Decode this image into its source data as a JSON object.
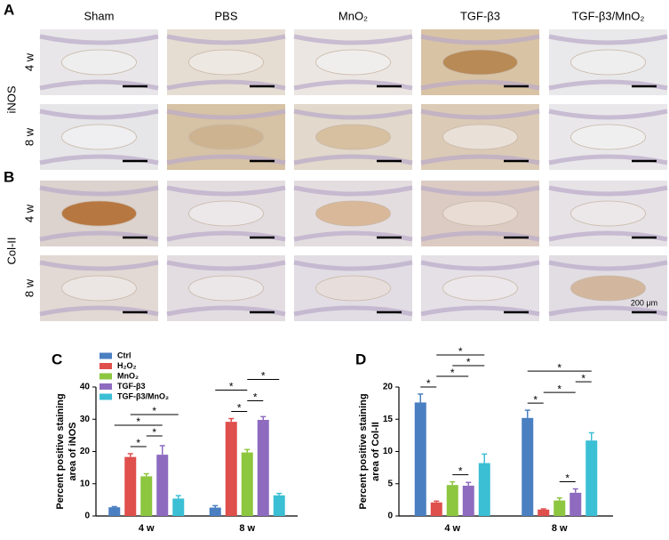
{
  "figure": {
    "panel_labels": [
      "A",
      "B",
      "C",
      "D"
    ],
    "columns": [
      "Sham",
      "PBS",
      "MnO₂",
      "TGF-β3",
      "TGF-β3/MnO₂"
    ],
    "row_groups": [
      "iNOS",
      "Col-II"
    ],
    "rows": [
      "4 w",
      "8 w"
    ],
    "scale_bar": "200 μm"
  },
  "chart_data": [
    {
      "type": "bar",
      "ylabel": [
        "Percent positive staining",
        "area of iNOS"
      ],
      "categories": [
        "4 w",
        "8 w"
      ],
      "ylim": [
        0,
        40
      ],
      "yticks": [
        0,
        10,
        20,
        30,
        40
      ],
      "legend": "top-left",
      "series": [
        {
          "name": "Ctrl",
          "color": "#4a7fc1",
          "values": [
            2.7,
            2.6
          ],
          "errors": [
            0.2,
            0.6
          ]
        },
        {
          "name": "H₂O₂",
          "color": "#df4f4c",
          "values": [
            18.3,
            29.2
          ],
          "errors": [
            1.0,
            1.0
          ]
        },
        {
          "name": "MnO₂",
          "color": "#8dc63f",
          "values": [
            12.3,
            19.7
          ],
          "errors": [
            0.8,
            0.9
          ]
        },
        {
          "name": "TGF-β3",
          "color": "#8e6bbf",
          "values": [
            19.0,
            29.8
          ],
          "errors": [
            2.8,
            1.0
          ]
        },
        {
          "name": "TGF-β3/MnO₂",
          "color": "#3bbfd4",
          "values": [
            5.4,
            6.4
          ],
          "errors": [
            0.9,
            0.6
          ]
        }
      ],
      "annotations": [
        {
          "label": "*",
          "group": 0,
          "from": 1,
          "to": 2
        },
        {
          "label": "*",
          "group": 0,
          "from": 2,
          "to": 3
        },
        {
          "label": "*",
          "group": 0,
          "from": 0,
          "to": 3
        },
        {
          "label": "*",
          "group": 0,
          "from": 1,
          "to": 4
        },
        {
          "label": "*",
          "group": 1,
          "from": 1,
          "to": 2
        },
        {
          "label": "*",
          "group": 1,
          "from": 2,
          "to": 3
        },
        {
          "label": "*",
          "group": 1,
          "from": 0,
          "to": 2
        },
        {
          "label": "*",
          "group": 1,
          "from": 2,
          "to": 4
        }
      ]
    },
    {
      "type": "bar",
      "ylabel": [
        "Percent positive staining",
        "area of Col-II"
      ],
      "categories": [
        "4 w",
        "8 w"
      ],
      "ylim": [
        0,
        20
      ],
      "yticks": [
        0,
        5,
        10,
        15,
        20
      ],
      "series": [
        {
          "color": "#4a7fc1",
          "values": [
            17.6,
            15.2
          ],
          "errors": [
            1.3,
            1.2
          ]
        },
        {
          "color": "#df4f4c",
          "values": [
            2.1,
            1.0
          ],
          "errors": [
            0.2,
            0.1
          ]
        },
        {
          "color": "#8dc63f",
          "values": [
            4.8,
            2.4
          ],
          "errors": [
            0.5,
            0.4
          ]
        },
        {
          "color": "#8e6bbf",
          "values": [
            4.7,
            3.6
          ],
          "errors": [
            0.5,
            0.6
          ]
        },
        {
          "color": "#3bbfd4",
          "values": [
            8.2,
            11.7
          ],
          "errors": [
            1.4,
            1.2
          ]
        }
      ],
      "annotations": [
        {
          "label": "*",
          "group": 0,
          "from": 0,
          "to": 1
        },
        {
          "label": "*",
          "group": 0,
          "from": 2,
          "to": 3
        },
        {
          "label": "*",
          "group": 0,
          "from": 1,
          "to": 3
        },
        {
          "label": "*",
          "group": 0,
          "from": 2,
          "to": 4
        },
        {
          "label": "*",
          "group": 0,
          "from": 1,
          "to": 4
        },
        {
          "label": "*",
          "group": 1,
          "from": 0,
          "to": 1
        },
        {
          "label": "*",
          "group": 1,
          "from": 2,
          "to": 3
        },
        {
          "label": "*",
          "group": 1,
          "from": 1,
          "to": 3
        },
        {
          "label": "*",
          "group": 1,
          "from": 3,
          "to": 4
        },
        {
          "label": "*",
          "group": 1,
          "from": 0,
          "to": 4
        }
      ]
    }
  ]
}
